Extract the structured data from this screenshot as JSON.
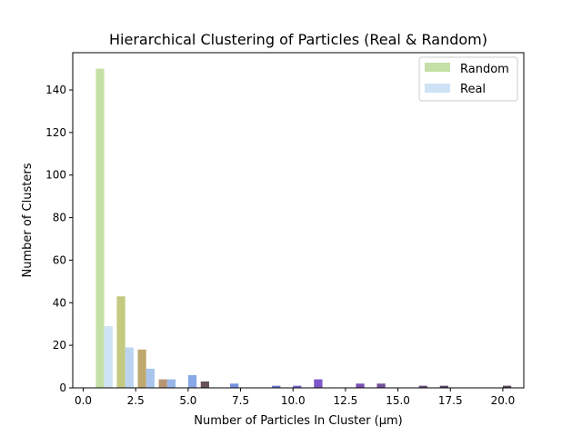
{
  "chart_data": {
    "type": "bar",
    "title": "Hierarchical Clustering of Particles (Real & Random)",
    "xlabel": "Number of Particles In Cluster (µm)",
    "ylabel": "Number of Clusters",
    "xlim": [
      -0.5,
      21.0
    ],
    "ylim": [
      0,
      157.5
    ],
    "x_ticks": [
      0.0,
      2.5,
      5.0,
      7.5,
      10.0,
      12.5,
      15.0,
      17.5,
      20.0
    ],
    "x_tick_labels": [
      "0.0",
      "2.5",
      "5.0",
      "7.5",
      "10.0",
      "12.5",
      "15.0",
      "17.5",
      "20.0"
    ],
    "y_ticks": [
      0,
      20,
      40,
      60,
      80,
      100,
      120,
      140
    ],
    "y_tick_labels": [
      "0",
      "20",
      "40",
      "60",
      "80",
      "100",
      "120",
      "140"
    ],
    "legend_position": "top-right",
    "grid": false,
    "series": [
      {
        "name": "Random",
        "legend_color": "#c5e0a7",
        "points": [
          {
            "x": 0.8,
            "y": 150,
            "color": "#c5e0a7"
          },
          {
            "x": 1.8,
            "y": 43,
            "color": "#c4ca7f"
          },
          {
            "x": 2.8,
            "y": 18,
            "color": "#bfa86d"
          },
          {
            "x": 3.8,
            "y": 4,
            "color": "#b89473"
          }
        ]
      },
      {
        "name": "Real",
        "legend_color": "#cfe3f6",
        "points": [
          {
            "x": 1.2,
            "y": 29,
            "color": "#cfe3f6"
          },
          {
            "x": 2.2,
            "y": 19,
            "color": "#bdd4f1"
          },
          {
            "x": 3.2,
            "y": 9,
            "color": "#a9c5ee"
          },
          {
            "x": 4.2,
            "y": 4,
            "color": "#98b8ea"
          },
          {
            "x": 5.2,
            "y": 6,
            "color": "#89a9e6"
          },
          {
            "x": 7.2,
            "y": 2,
            "color": "#7592e0"
          },
          {
            "x": 9.2,
            "y": 1,
            "color": "#6a78d6"
          },
          {
            "x": 10.2,
            "y": 1,
            "color": "#6f68ce"
          },
          {
            "x": 11.2,
            "y": 4,
            "color": "#7d57c8"
          },
          {
            "x": 13.2,
            "y": 2,
            "color": "#7c4fb3"
          },
          {
            "x": 14.2,
            "y": 2,
            "color": "#72509a"
          },
          {
            "x": 16.2,
            "y": 1,
            "color": "#6a4e80"
          },
          {
            "x": 17.2,
            "y": 1,
            "color": "#5f4b68"
          },
          {
            "x": 20.2,
            "y": 1,
            "color": "#574956"
          }
        ]
      },
      {
        "name": "",
        "points": [
          {
            "x": 5.8,
            "y": 3,
            "color": "#6a5258"
          }
        ]
      }
    ]
  }
}
